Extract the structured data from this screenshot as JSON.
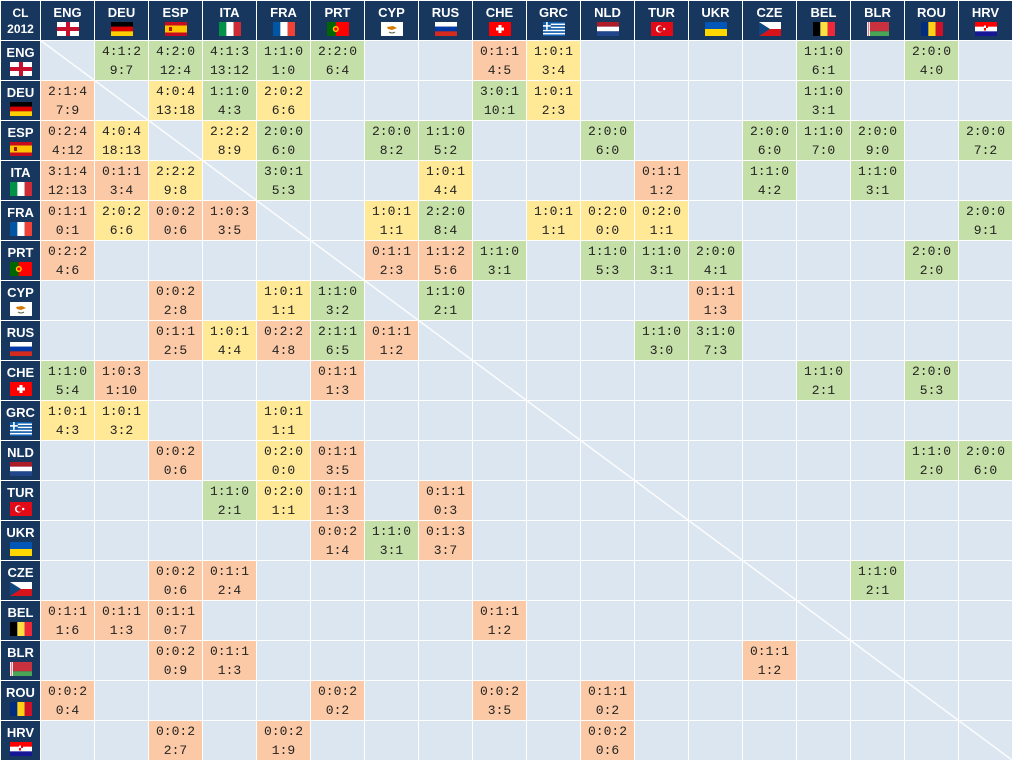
{
  "corner": {
    "line1": "CL",
    "line2": "2012"
  },
  "countries": [
    {
      "code": "ENG",
      "flag": "england-flag"
    },
    {
      "code": "DEU",
      "flag": "germany-flag"
    },
    {
      "code": "ESP",
      "flag": "spain-flag"
    },
    {
      "code": "ITA",
      "flag": "italy-flag"
    },
    {
      "code": "FRA",
      "flag": "france-flag"
    },
    {
      "code": "PRT",
      "flag": "portugal-flag"
    },
    {
      "code": "CYP",
      "flag": "cyprus-flag"
    },
    {
      "code": "RUS",
      "flag": "russia-flag"
    },
    {
      "code": "CHE",
      "flag": "switzerland-flag"
    },
    {
      "code": "GRC",
      "flag": "greece-flag"
    },
    {
      "code": "NLD",
      "flag": "netherlands-flag"
    },
    {
      "code": "TUR",
      "flag": "turkey-flag"
    },
    {
      "code": "UKR",
      "flag": "ukraine-flag"
    },
    {
      "code": "CZE",
      "flag": "czech-flag"
    },
    {
      "code": "BEL",
      "flag": "belgium-flag"
    },
    {
      "code": "BLR",
      "flag": "belarus-flag"
    },
    {
      "code": "ROU",
      "flag": "romania-flag"
    },
    {
      "code": "HRV",
      "flag": "croatia-flag"
    }
  ],
  "colors": {
    "win": "#c4dfa7",
    "draw": "#ffe896",
    "loss": "#fbc9a5",
    "empty": "#dce6f1",
    "header": "#17375e"
  },
  "matrix": [
    [
      "",
      "4:1:2|9:7",
      "4:2:0|12:4",
      "4:1:3|13:12",
      "1:1:0|1:0",
      "2:2:0|6:4",
      "",
      "",
      "0:1:1|4:5",
      "1:0:1|3:4",
      "",
      "",
      "",
      "",
      "1:1:0|6:1",
      "",
      "2:0:0|4:0",
      ""
    ],
    [
      "2:1:4|7:9",
      "",
      "4:0:4|13:18",
      "1:1:0|4:3",
      "2:0:2|6:6",
      "",
      "",
      "",
      "3:0:1|10:1",
      "1:0:1|2:3",
      "",
      "",
      "",
      "",
      "1:1:0|3:1",
      "",
      "",
      ""
    ],
    [
      "0:2:4|4:12",
      "4:0:4|18:13",
      "",
      "2:2:2|8:9",
      "2:0:0|6:0",
      "",
      "2:0:0|8:2",
      "1:1:0|5:2",
      "",
      "",
      "2:0:0|6:0",
      "",
      "",
      "2:0:0|6:0",
      "1:1:0|7:0",
      "2:0:0|9:0",
      "",
      "2:0:0|7:2"
    ],
    [
      "3:1:4|12:13",
      "0:1:1|3:4",
      "2:2:2|9:8",
      "",
      "3:0:1|5:3",
      "",
      "",
      "1:0:1|4:4",
      "",
      "",
      "",
      "0:1:1|1:2",
      "",
      "1:1:0|4:2",
      "",
      "1:1:0|3:1",
      "",
      ""
    ],
    [
      "0:1:1|0:1",
      "2:0:2|6:6",
      "0:0:2|0:6",
      "1:0:3|3:5",
      "",
      "",
      "1:0:1|1:1",
      "2:2:0|8:4",
      "",
      "1:0:1|1:1",
      "0:2:0|0:0",
      "0:2:0|1:1",
      "",
      "",
      "",
      "",
      "",
      "2:0:0|9:1"
    ],
    [
      "0:2:2|4:6",
      "",
      "",
      "",
      "",
      "",
      "0:1:1|2:3",
      "1:1:2|5:6",
      "1:1:0|3:1",
      "",
      "1:1:0|5:3",
      "1:1:0|3:1",
      "2:0:0|4:1",
      "",
      "",
      "",
      "2:0:0|2:0",
      ""
    ],
    [
      "",
      "",
      "0:0:2|2:8",
      "",
      "1:0:1|1:1",
      "1:1:0|3:2",
      "",
      "1:1:0|2:1",
      "",
      "",
      "",
      "",
      "0:1:1|1:3",
      "",
      "",
      "",
      "",
      ""
    ],
    [
      "",
      "",
      "0:1:1|2:5",
      "1:0:1|4:4",
      "0:2:2|4:8",
      "2:1:1|6:5",
      "0:1:1|1:2",
      "",
      "",
      "",
      "",
      "1:1:0|3:0",
      "3:1:0|7:3",
      "",
      "",
      "",
      "",
      ""
    ],
    [
      "1:1:0|5:4",
      "1:0:3|1:10",
      "",
      "",
      "",
      "0:1:1|1:3",
      "",
      "",
      "",
      "",
      "",
      "",
      "",
      "",
      "1:1:0|2:1",
      "",
      "2:0:0|5:3",
      ""
    ],
    [
      "1:0:1|4:3",
      "1:0:1|3:2",
      "",
      "",
      "1:0:1|1:1",
      "",
      "",
      "",
      "",
      "",
      "",
      "",
      "",
      "",
      "",
      "",
      "",
      ""
    ],
    [
      "",
      "",
      "0:0:2|0:6",
      "",
      "0:2:0|0:0",
      "0:1:1|3:5",
      "",
      "",
      "",
      "",
      "",
      "",
      "",
      "",
      "",
      "",
      "1:1:0|2:0",
      "2:0:0|6:0"
    ],
    [
      "",
      "",
      "",
      "1:1:0|2:1",
      "0:2:0|1:1",
      "0:1:1|1:3",
      "",
      "0:1:1|0:3",
      "",
      "",
      "",
      "",
      "",
      "",
      "",
      "",
      "",
      ""
    ],
    [
      "",
      "",
      "",
      "",
      "",
      "0:0:2|1:4",
      "1:1:0|3:1",
      "0:1:3|3:7",
      "",
      "",
      "",
      "",
      "",
      "",
      "",
      "",
      "",
      ""
    ],
    [
      "",
      "",
      "0:0:2|0:6",
      "0:1:1|2:4",
      "",
      "",
      "",
      "",
      "",
      "",
      "",
      "",
      "",
      "",
      "",
      "1:1:0|2:1",
      "",
      ""
    ],
    [
      "0:1:1|1:6",
      "0:1:1|1:3",
      "0:1:1|0:7",
      "",
      "",
      "",
      "",
      "",
      "0:1:1|1:2",
      "",
      "",
      "",
      "",
      "",
      "",
      "",
      "",
      ""
    ],
    [
      "",
      "",
      "0:0:2|0:9",
      "0:1:1|1:3",
      "",
      "",
      "",
      "",
      "",
      "",
      "",
      "",
      "",
      "0:1:1|1:2",
      "",
      "",
      "",
      ""
    ],
    [
      "0:0:2|0:4",
      "",
      "",
      "",
      "",
      "0:0:2|0:2",
      "",
      "",
      "0:0:2|3:5",
      "",
      "0:1:1|0:2",
      "",
      "",
      "",
      "",
      "",
      "",
      ""
    ],
    [
      "",
      "",
      "0:0:2|2:7",
      "",
      "0:0:2|1:9",
      "",
      "",
      "",
      "",
      "",
      "0:0:2|0:6",
      "",
      "",
      "",
      "",
      "",
      "",
      ""
    ]
  ]
}
